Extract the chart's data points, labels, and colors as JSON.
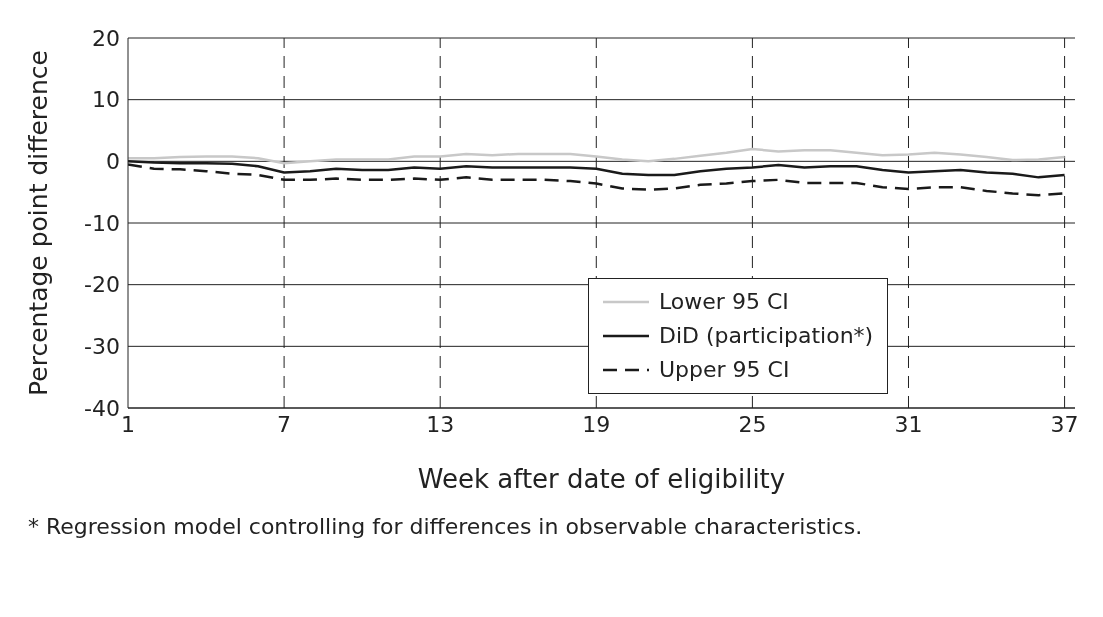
{
  "chart_data": {
    "type": "line",
    "xlabel": "Week after date of eligibility",
    "ylabel": "Percentage point difference",
    "annotations": [
      "* Regression model controlling for differences in observable characteristics."
    ],
    "x": [
      1,
      2,
      3,
      4,
      5,
      6,
      7,
      8,
      9,
      10,
      11,
      12,
      13,
      14,
      15,
      16,
      17,
      18,
      19,
      20,
      21,
      22,
      23,
      24,
      25,
      26,
      27,
      28,
      29,
      30,
      31,
      32,
      33,
      34,
      35,
      36,
      37
    ],
    "series": [
      {
        "name": "Lower 95 CI",
        "color": "#c8c8c8",
        "line_style": "solid",
        "values": [
          0.5,
          0.5,
          0.7,
          0.8,
          0.8,
          0.5,
          -0.3,
          0,
          0.3,
          0.3,
          0.3,
          0.8,
          0.8,
          1.2,
          1,
          1.2,
          1.2,
          1.2,
          0.8,
          0.3,
          0,
          0.4,
          0.9,
          1.4,
          2,
          1.6,
          1.8,
          1.8,
          1.4,
          1,
          1.1,
          1.4,
          1.1,
          0.7,
          0.2,
          0.3,
          0.7
        ]
      },
      {
        "name": "DiD (participation*)",
        "color": "#1a1a1a",
        "line_style": "solid",
        "values": [
          0,
          -0.2,
          -0.3,
          -0.3,
          -0.4,
          -0.8,
          -1.8,
          -1.6,
          -1.2,
          -1.4,
          -1.4,
          -1,
          -1.2,
          -0.8,
          -1,
          -1,
          -1,
          -1,
          -1.2,
          -2,
          -2.2,
          -2.2,
          -1.6,
          -1.2,
          -1,
          -0.6,
          -1,
          -0.8,
          -0.8,
          -1.4,
          -1.8,
          -1.6,
          -1.4,
          -1.8,
          -2,
          -2.6,
          -2.2
        ]
      },
      {
        "name": "Upper 95 CI",
        "color": "#1a1a1a",
        "line_style": "dashed",
        "values": [
          -0.5,
          -1.2,
          -1.3,
          -1.6,
          -2,
          -2.2,
          -3,
          -3,
          -2.8,
          -3,
          -3,
          -2.8,
          -3,
          -2.6,
          -3,
          -3,
          -3,
          -3.2,
          -3.6,
          -4.4,
          -4.6,
          -4.4,
          -3.8,
          -3.6,
          -3.2,
          -3,
          -3.5,
          -3.5,
          -3.5,
          -4.2,
          -4.5,
          -4.2,
          -4.2,
          -4.8,
          -5.2,
          -5.5,
          -5.2
        ]
      }
    ],
    "xlim": [
      1,
      37.4
    ],
    "xticks": [
      1,
      7,
      13,
      19,
      25,
      31,
      37
    ],
    "ylim": [
      -40,
      20
    ],
    "yticks": [
      -40,
      -30,
      -20,
      -10,
      0,
      10,
      20
    ],
    "grid": true,
    "legend": "right",
    "marker": "none"
  }
}
